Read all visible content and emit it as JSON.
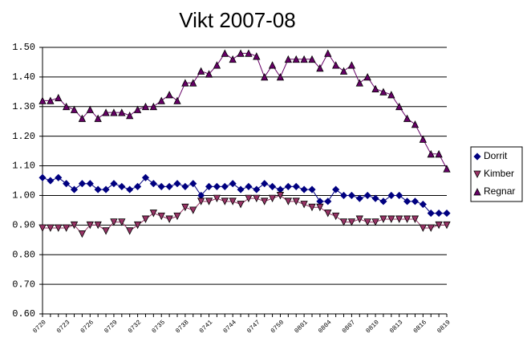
{
  "chart_data": {
    "type": "line",
    "title": "Vikt 2007-08",
    "categories": [
      "0720",
      null,
      null,
      "0723",
      null,
      null,
      "0726",
      null,
      null,
      "0729",
      null,
      null,
      "0732",
      null,
      null,
      "0735",
      null,
      null,
      "0738",
      null,
      null,
      "0741",
      null,
      null,
      "0744",
      null,
      null,
      "0747",
      null,
      null,
      "0750",
      null,
      null,
      "0801",
      null,
      null,
      "0804",
      null,
      null,
      "0807",
      null,
      null,
      "0810",
      null,
      null,
      "0813",
      null,
      null,
      "0816",
      null,
      null,
      "0819"
    ],
    "series": [
      {
        "name": "Dorrit",
        "color": "#000080",
        "marker": "diamond",
        "values": [
          1.06,
          1.05,
          1.06,
          1.04,
          1.02,
          1.04,
          1.04,
          1.02,
          1.02,
          1.04,
          1.03,
          1.02,
          1.03,
          1.06,
          1.04,
          1.03,
          1.03,
          1.04,
          1.03,
          1.04,
          1.0,
          1.03,
          1.03,
          1.03,
          1.04,
          1.02,
          1.03,
          1.02,
          1.04,
          1.03,
          1.02,
          1.03,
          1.03,
          1.02,
          1.02,
          0.98,
          0.98,
          1.02,
          1.0,
          1.0,
          0.99,
          1.0,
          0.99,
          0.98,
          1.0,
          1.0,
          0.98,
          0.98,
          0.97,
          0.94,
          0.94,
          0.94
        ]
      },
      {
        "name": "Kimber",
        "color": "#993366",
        "marker": "triangle-down",
        "values": [
          0.89,
          0.89,
          0.89,
          0.89,
          0.9,
          0.87,
          0.9,
          0.9,
          0.88,
          0.91,
          0.91,
          0.88,
          0.9,
          0.92,
          0.94,
          0.93,
          0.92,
          0.93,
          0.96,
          0.95,
          0.98,
          0.98,
          0.99,
          0.98,
          0.98,
          0.97,
          0.99,
          0.99,
          0.98,
          0.99,
          1.0,
          0.98,
          0.98,
          0.97,
          0.96,
          0.96,
          0.94,
          0.93,
          0.91,
          0.91,
          0.92,
          0.91,
          0.91,
          0.92,
          0.92,
          0.92,
          0.92,
          0.92,
          0.89,
          0.89,
          0.9,
          0.9
        ]
      },
      {
        "name": "Regnar",
        "color": "#660066",
        "marker": "triangle-up",
        "values": [
          1.32,
          1.32,
          1.33,
          1.3,
          1.29,
          1.26,
          1.29,
          1.26,
          1.28,
          1.28,
          1.28,
          1.27,
          1.29,
          1.3,
          1.3,
          1.32,
          1.34,
          1.32,
          1.38,
          1.38,
          1.42,
          1.41,
          1.44,
          1.48,
          1.46,
          1.48,
          1.48,
          1.47,
          1.4,
          1.44,
          1.4,
          1.46,
          1.46,
          1.46,
          1.46,
          1.43,
          1.48,
          1.44,
          1.42,
          1.44,
          1.38,
          1.4,
          1.36,
          1.35,
          1.34,
          1.3,
          1.26,
          1.24,
          1.19,
          1.14,
          1.14,
          1.09
        ]
      }
    ],
    "ylim": [
      0.6,
      1.5
    ],
    "yticks": [
      {
        "value": 0.6,
        "label": "0.60"
      },
      {
        "value": 0.7,
        "label": "0.70"
      },
      {
        "value": 0.8,
        "label": "0.80"
      },
      {
        "value": 0.9,
        "label": "0.90"
      },
      {
        "value": 1.0,
        "label": "1.00"
      },
      {
        "value": 1.1,
        "label": "1.10"
      },
      {
        "value": 1.2,
        "label": "1.20"
      },
      {
        "value": 1.3,
        "label": "1.30"
      },
      {
        "value": 1.4,
        "label": "1.40"
      },
      {
        "value": 1.5,
        "label": "1.50"
      }
    ],
    "grid": true,
    "legend": "right"
  }
}
